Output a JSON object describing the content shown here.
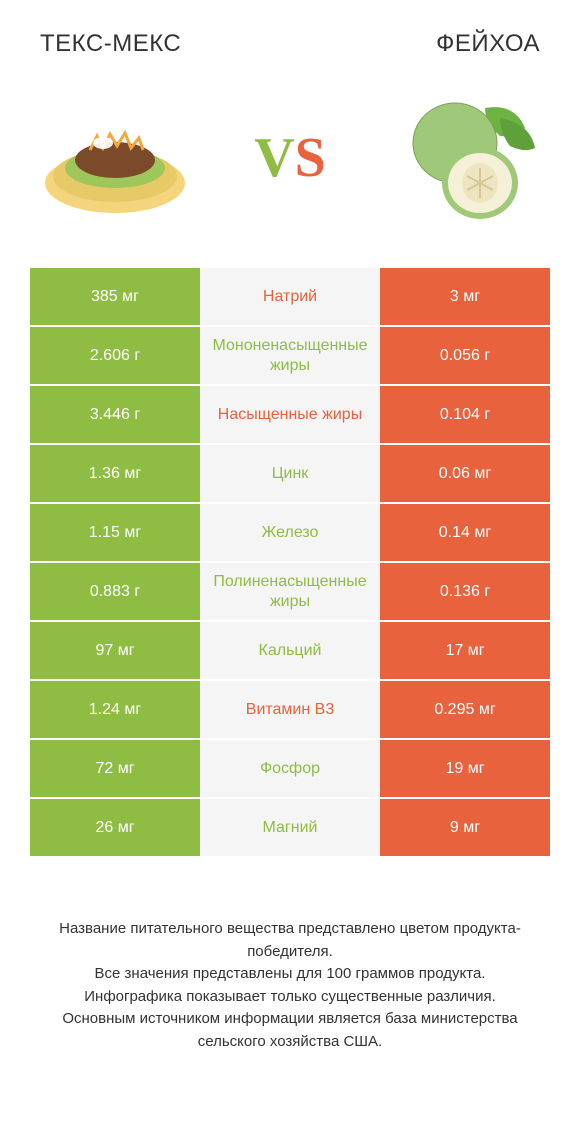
{
  "header": {
    "left_title": "ТЕКС-МЕКС",
    "right_title": "ФЕЙХОА",
    "vs_v": "V",
    "vs_s": "S"
  },
  "colors": {
    "green": "#8fbc42",
    "orange": "#e8623d",
    "center_bg": "#f5f5f5",
    "text": "#333333"
  },
  "rows": [
    {
      "left": "385 мг",
      "label": "Натрий",
      "right": "3 мг",
      "label_color": "orange"
    },
    {
      "left": "2.606 г",
      "label": "Мононенасыщенные жиры",
      "right": "0.056 г",
      "label_color": "green"
    },
    {
      "left": "3.446 г",
      "label": "Насыщенные жиры",
      "right": "0.104 г",
      "label_color": "orange"
    },
    {
      "left": "1.36 мг",
      "label": "Цинк",
      "right": "0.06 мг",
      "label_color": "green"
    },
    {
      "left": "1.15 мг",
      "label": "Железо",
      "right": "0.14 мг",
      "label_color": "green"
    },
    {
      "left": "0.883 г",
      "label": "Полиненасыщенные жиры",
      "right": "0.136 г",
      "label_color": "green"
    },
    {
      "left": "97 мг",
      "label": "Кальций",
      "right": "17 мг",
      "label_color": "green"
    },
    {
      "left": "1.24 мг",
      "label": "Витамин B3",
      "right": "0.295 мг",
      "label_color": "orange"
    },
    {
      "left": "72 мг",
      "label": "Фосфор",
      "right": "19 мг",
      "label_color": "green"
    },
    {
      "left": "26 мг",
      "label": "Магний",
      "right": "9 мг",
      "label_color": "green"
    }
  ],
  "footer": {
    "line1": "Название питательного вещества представлено цветом продукта-победителя.",
    "line2": "Все значения представлены для 100 граммов продукта.",
    "line3": "Инфографика показывает только существенные различия.",
    "line4": "Основным источником информации является база министерства сельского хозяйства США."
  }
}
